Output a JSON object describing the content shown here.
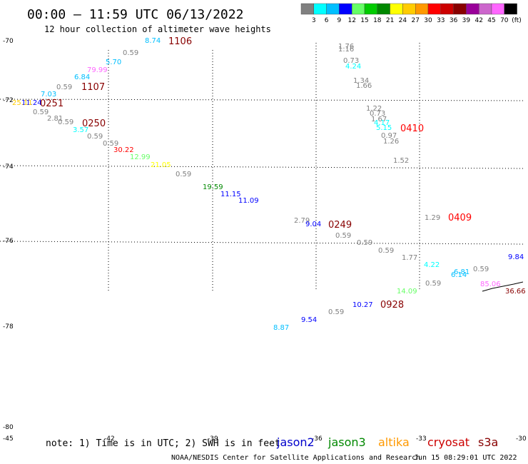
{
  "header": {
    "title": "00:00 – 11:59 UTC 06/13/2022",
    "subtitle": "12 hour collection of altimeter wave heights"
  },
  "legend": {
    "unit": "(ft)",
    "bins": [
      {
        "label": "3",
        "color": "#808080"
      },
      {
        "label": "6",
        "color": "#00ffff"
      },
      {
        "label": "9",
        "color": "#00bfff"
      },
      {
        "label": "12",
        "color": "#0000ff"
      },
      {
        "label": "15",
        "color": "#66ff66"
      },
      {
        "label": "18",
        "color": "#00cc00"
      },
      {
        "label": "21",
        "color": "#008800"
      },
      {
        "label": "24",
        "color": "#ffff00"
      },
      {
        "label": "27",
        "color": "#ffcc00"
      },
      {
        "label": "30",
        "color": "#ff9900"
      },
      {
        "label": "33",
        "color": "#ff0000"
      },
      {
        "label": "36",
        "color": "#cc0000"
      },
      {
        "label": "39",
        "color": "#880000"
      },
      {
        "label": "42",
        "color": "#990099"
      },
      {
        "label": "45",
        "color": "#cc66cc"
      },
      {
        "label": "70",
        "color": "#ff66ff"
      },
      {
        "label": "",
        "color": "#000000"
      }
    ]
  },
  "lat_labels": [
    {
      "text": "-70"
    },
    {
      "text": "-72"
    },
    {
      "text": "-74"
    },
    {
      "text": "-76"
    },
    {
      "text": "-78"
    },
    {
      "text": "-80"
    }
  ],
  "lon_labels": [
    {
      "text": "-45"
    },
    {
      "text": "-42"
    },
    {
      "text": "-39"
    },
    {
      "text": "-36"
    },
    {
      "text": "-33"
    },
    {
      "text": "-30"
    }
  ],
  "wave_labels": [
    {
      "text": "8.74",
      "color": "#00bfff"
    },
    {
      "text": "0.59",
      "color": "#808080"
    },
    {
      "text": "5.70",
      "color": "#00bfff"
    },
    {
      "text": "79.99",
      "color": "#ff66ff"
    },
    {
      "text": "6.84",
      "color": "#00bfff"
    },
    {
      "text": "0.59",
      "color": "#808080"
    },
    {
      "text": "7.03",
      "color": "#00bfff"
    },
    {
      "text": "11.24",
      "color": "#0000ff"
    },
    {
      "text": "25.11",
      "color": "#ffcc00"
    },
    {
      "text": "0.59",
      "color": "#808080"
    },
    {
      "text": "2.81",
      "color": "#808080"
    },
    {
      "text": "0.59",
      "color": "#808080"
    },
    {
      "text": "3.57",
      "color": "#00ffff"
    },
    {
      "text": "0.59",
      "color": "#808080"
    },
    {
      "text": "0.59",
      "color": "#808080"
    },
    {
      "text": "30.22",
      "color": "#ff0000"
    },
    {
      "text": "12.99",
      "color": "#66ff66"
    },
    {
      "text": "21.05",
      "color": "#ffff00"
    },
    {
      "text": "0.59",
      "color": "#808080"
    },
    {
      "text": "19.59",
      "color": "#008800"
    },
    {
      "text": "11.15",
      "color": "#0000ff"
    },
    {
      "text": "11.09",
      "color": "#0000ff"
    },
    {
      "text": "1.76",
      "color": "#808080"
    },
    {
      "text": "1.16",
      "color": "#808080"
    },
    {
      "text": "0.73",
      "color": "#808080"
    },
    {
      "text": "4.24",
      "color": "#00ffff"
    },
    {
      "text": "1.34",
      "color": "#808080"
    },
    {
      "text": "1.66",
      "color": "#808080"
    },
    {
      "text": "1.22",
      "color": "#808080"
    },
    {
      "text": "0.73",
      "color": "#808080"
    },
    {
      "text": "1.67",
      "color": "#808080"
    },
    {
      "text": "4.17",
      "color": "#00ffff"
    },
    {
      "text": "5.15",
      "color": "#00ffff"
    },
    {
      "text": "0.97",
      "color": "#808080"
    },
    {
      "text": "1.26",
      "color": "#808080"
    },
    {
      "text": "1.52",
      "color": "#808080"
    },
    {
      "text": "2.79",
      "color": "#808080"
    },
    {
      "text": "9.04",
      "color": "#0000ff"
    },
    {
      "text": "0.59",
      "color": "#808080"
    },
    {
      "text": "0.59",
      "color": "#808080"
    },
    {
      "text": "0.59",
      "color": "#808080"
    },
    {
      "text": "1.29",
      "color": "#808080"
    },
    {
      "text": "1.77",
      "color": "#808080"
    },
    {
      "text": "4.22",
      "color": "#00ffff"
    },
    {
      "text": "6.14",
      "color": "#00bfff"
    },
    {
      "text": "6.81",
      "color": "#00bfff"
    },
    {
      "text": "0.59",
      "color": "#808080"
    },
    {
      "text": "9.84",
      "color": "#0000ff"
    },
    {
      "text": "0.59",
      "color": "#808080"
    },
    {
      "text": "14.09",
      "color": "#66ff66"
    },
    {
      "text": "85.06",
      "color": "#ff66ff"
    },
    {
      "text": "36.66",
      "color": "#880000"
    },
    {
      "text": "10.27",
      "color": "#0000ff"
    },
    {
      "text": "0.59",
      "color": "#808080"
    },
    {
      "text": "9.54",
      "color": "#0000ff"
    },
    {
      "text": "8.87",
      "color": "#00bfff"
    }
  ],
  "time_labels": [
    {
      "text": "1106",
      "color": "#880000"
    },
    {
      "text": "1107",
      "color": "#880000"
    },
    {
      "text": "0251",
      "color": "#880000"
    },
    {
      "text": "0250",
      "color": "#880000"
    },
    {
      "text": "0410",
      "color": "#ff0000"
    },
    {
      "text": "0249",
      "color": "#880000"
    },
    {
      "text": "0409",
      "color": "#ff0000"
    },
    {
      "text": "0928",
      "color": "#880000"
    }
  ],
  "footer": {
    "note": "note: 1) Time is in UTC; 2) SWH is in feet",
    "satellites": [
      {
        "name": "jason2",
        "color": "#0000cc"
      },
      {
        "name": "jason3",
        "color": "#008800"
      },
      {
        "name": "altika",
        "color": "#ff9900"
      },
      {
        "name": "cryosat",
        "color": "#cc0000"
      },
      {
        "name": "s3a",
        "color": "#880000"
      }
    ],
    "credit": "NOAA/NESDIS Center for Satellite Applications and Research",
    "timestamp": "Jun 15 08:29:01 UTC 2022"
  }
}
